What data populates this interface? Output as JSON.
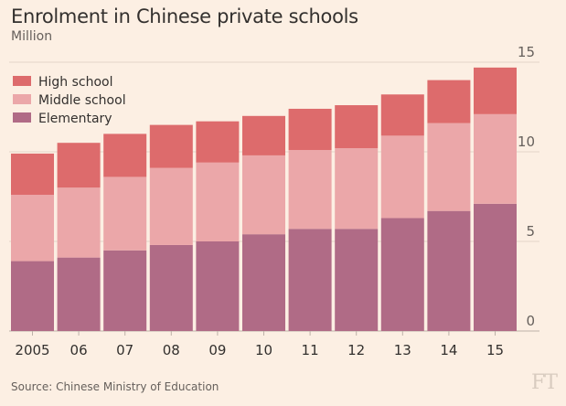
{
  "chart_data": {
    "type": "bar",
    "stacked": true,
    "title": "Enrolment in Chinese private schools",
    "subtitle": "Million",
    "source": "Source: Chinese Ministry of Education",
    "logo": "FT",
    "categories": [
      "2005",
      "06",
      "07",
      "08",
      "09",
      "10",
      "11",
      "12",
      "13",
      "14",
      "15"
    ],
    "ylim": [
      0,
      15
    ],
    "yticks": [
      "0",
      "5",
      "10",
      "15"
    ],
    "ytick_values": [
      0,
      5,
      10,
      15
    ],
    "legend_position": "top-left",
    "series": [
      {
        "name": "Elementary",
        "color": "#b06b86",
        "values": [
          3.9,
          4.1,
          4.5,
          4.8,
          5.0,
          5.4,
          5.7,
          5.7,
          6.3,
          6.7,
          7.1
        ]
      },
      {
        "name": "Middle school",
        "color": "#eba7a9",
        "values": [
          3.7,
          3.9,
          4.1,
          4.3,
          4.4,
          4.4,
          4.4,
          4.5,
          4.6,
          4.9,
          5.0
        ]
      },
      {
        "name": "High school",
        "color": "#dd6b6c",
        "values": [
          2.3,
          2.5,
          2.4,
          2.4,
          2.3,
          2.2,
          2.3,
          2.4,
          2.3,
          2.4,
          2.6
        ]
      }
    ],
    "legend_order": [
      "High school",
      "Middle school",
      "Elementary"
    ]
  }
}
